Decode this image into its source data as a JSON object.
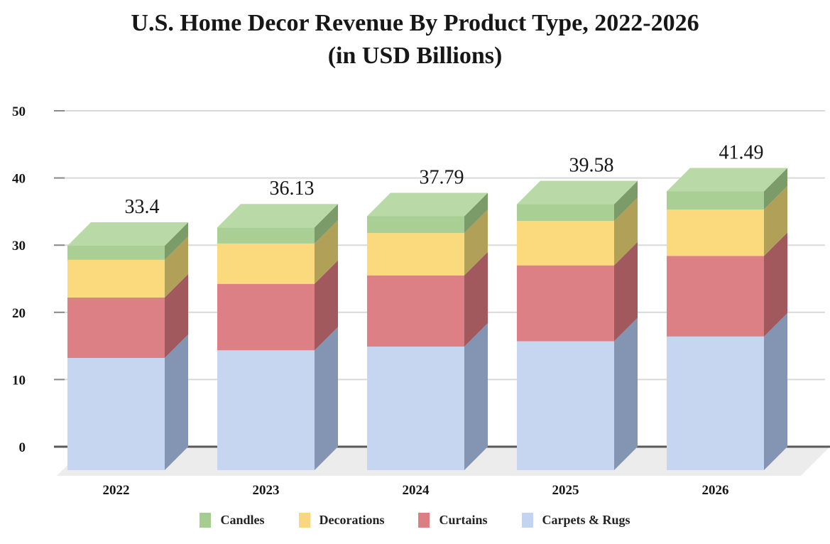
{
  "title": {
    "line1": "U.S. Home Decor Revenue By Product Type, 2022-2026",
    "line2": "(in USD Billions)"
  },
  "chart_data": {
    "type": "bar",
    "subtype": "stacked-3d-column",
    "title": "U.S. Home Decor Revenue By Product Type, 2022-2026 (in USD Billions)",
    "xlabel": "",
    "ylabel": "",
    "categories": [
      "2022",
      "2023",
      "2024",
      "2025",
      "2026"
    ],
    "series": [
      {
        "name": "Carpets & Rugs",
        "values": [
          16.7,
          17.83,
          18.39,
          19.18,
          19.89
        ],
        "front_color": "#c6d5f0",
        "side_color": "#8494b3",
        "top_color": "#d6e1f6",
        "legend_color": "#c3d4f2"
      },
      {
        "name": "Curtains",
        "values": [
          9.0,
          9.9,
          10.6,
          11.3,
          12.0
        ],
        "front_color": "#dd8085",
        "side_color": "#a2595e",
        "top_color": "#e7a0a4",
        "legend_color": "#dc7f80"
      },
      {
        "name": "Decorations",
        "values": [
          5.6,
          6.0,
          6.3,
          6.6,
          6.9
        ],
        "front_color": "#fbda7d",
        "side_color": "#b1a057",
        "top_color": "#fce49e",
        "legend_color": "#f9d77f"
      },
      {
        "name": "Candles",
        "values": [
          2.1,
          2.4,
          2.5,
          2.5,
          2.7
        ],
        "front_color": "#a9cf94",
        "side_color": "#7b9c69",
        "top_color": "#b9d9a7",
        "legend_color": "#a5cd90"
      }
    ],
    "totals": [
      33.4,
      36.13,
      37.79,
      39.58,
      41.49
    ],
    "total_labels": [
      "33.4",
      "36.13",
      "37.79",
      "39.58",
      "41.49"
    ],
    "y_ticks": [
      0,
      10,
      20,
      30,
      40,
      50
    ],
    "ylim": [
      0,
      50
    ],
    "grid": true,
    "legend_position": "bottom",
    "legend_order": [
      "Candles",
      "Decorations",
      "Curtains",
      "Carpets & Rugs"
    ]
  },
  "colors": {
    "gridline": "#d9d9d9",
    "tick": "#8a8a8a",
    "axis_line": "#5a5a5a",
    "floor": "#ececec",
    "text": "#171717",
    "label_text": "#1d1d1d"
  }
}
